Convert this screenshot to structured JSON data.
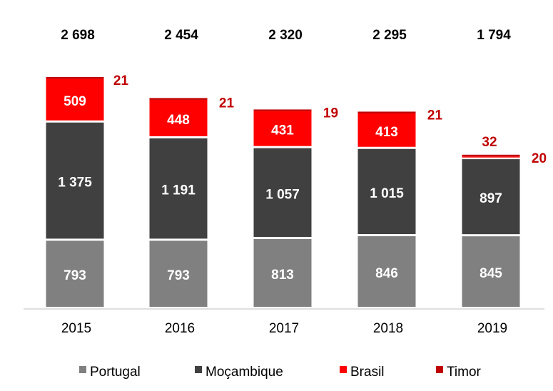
{
  "chart_data": {
    "type": "bar",
    "stacked": true,
    "categories": [
      "2015",
      "2016",
      "2017",
      "2018",
      "2019"
    ],
    "totals": [
      "2 698",
      "2 454",
      "2 320",
      "2 295",
      "1 794"
    ],
    "series": [
      {
        "name": "Portugal",
        "color": "#808080",
        "values": [
          793,
          793,
          813,
          846,
          845
        ],
        "labels": [
          "793",
          "793",
          "813",
          "846",
          "845"
        ]
      },
      {
        "name": "Moçambique",
        "color": "#404040",
        "values": [
          1375,
          1191,
          1057,
          1015,
          897
        ],
        "labels": [
          "1 375",
          "1 191",
          "1 057",
          "1 015",
          "897"
        ]
      },
      {
        "name": "Brasil",
        "color": "#ff0000",
        "values": [
          509,
          448,
          431,
          413,
          32
        ],
        "labels": [
          "509",
          "448",
          "431",
          "413",
          "32"
        ]
      },
      {
        "name": "Timor",
        "color": "#c00000",
        "values": [
          21,
          21,
          19,
          21,
          20
        ],
        "labels": [
          "21",
          "21",
          "19",
          "21",
          "20"
        ]
      }
    ],
    "legend_position": "bottom",
    "grid": false
  }
}
